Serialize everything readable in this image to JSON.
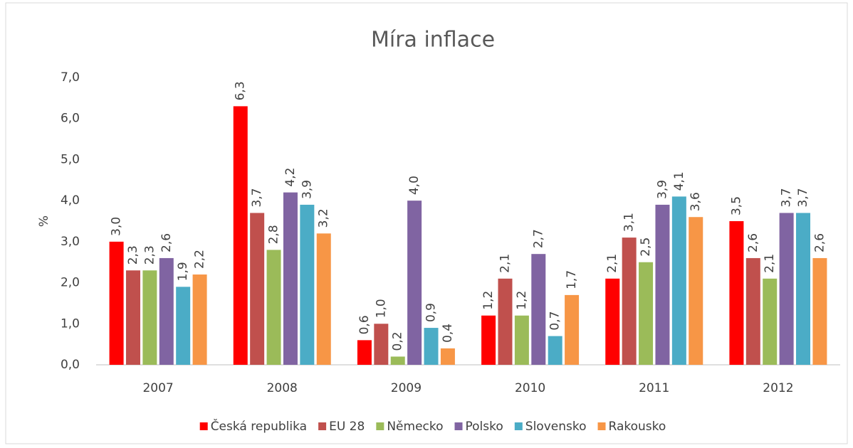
{
  "chart_data": {
    "type": "bar",
    "title": "Míra inflace",
    "y_label": "%",
    "categories": [
      "2007",
      "2008",
      "2009",
      "2010",
      "2011",
      "2012"
    ],
    "series": [
      {
        "name": "Česká republika",
        "color": "#ff0000",
        "values": [
          3.0,
          6.3,
          0.6,
          1.2,
          2.1,
          3.5
        ],
        "value_labels": [
          "3,0",
          "6,3",
          "0,6",
          "1,2",
          "2,1",
          "3,5"
        ]
      },
      {
        "name": "EU 28",
        "color": "#c0504d",
        "values": [
          2.3,
          3.7,
          1.0,
          2.1,
          3.1,
          2.6
        ],
        "value_labels": [
          "2,3",
          "3,7",
          "1,0",
          "2,1",
          "3,1",
          "2,6"
        ]
      },
      {
        "name": "Německo",
        "color": "#9bbb59",
        "values": [
          2.3,
          2.8,
          0.2,
          1.2,
          2.5,
          2.1
        ],
        "value_labels": [
          "2,3",
          "2,8",
          "0,2",
          "1,2",
          "2,5",
          "2,1"
        ]
      },
      {
        "name": "Polsko",
        "color": "#8064a2",
        "values": [
          2.6,
          4.2,
          4.0,
          2.7,
          3.9,
          3.7
        ],
        "value_labels": [
          "2,6",
          "4,2",
          "4,0",
          "2,7",
          "3,9",
          "3,7"
        ]
      },
      {
        "name": "Slovensko",
        "color": "#4bacc6",
        "values": [
          1.9,
          3.9,
          0.9,
          0.7,
          4.1,
          3.7
        ],
        "value_labels": [
          "1,9",
          "3,9",
          "0,9",
          "0,7",
          "4,1",
          "3,7"
        ]
      },
      {
        "name": "Rakousko",
        "color": "#f79646",
        "values": [
          2.2,
          3.2,
          0.4,
          1.7,
          3.6,
          2.6
        ],
        "value_labels": [
          "2,2",
          "3,2",
          "0,4",
          "1,7",
          "3,6",
          "2,6"
        ]
      }
    ],
    "ylim": [
      0,
      7
    ],
    "yticks": [
      {
        "value": 0,
        "label": "0,0"
      },
      {
        "value": 1,
        "label": "1,0"
      },
      {
        "value": 2,
        "label": "2,0"
      },
      {
        "value": 3,
        "label": "3,0"
      },
      {
        "value": 4,
        "label": "4,0"
      },
      {
        "value": 5,
        "label": "5,0"
      },
      {
        "value": 6,
        "label": "6,0"
      },
      {
        "value": 7,
        "label": "7,0"
      }
    ],
    "grid": false,
    "legend": "bottom"
  }
}
